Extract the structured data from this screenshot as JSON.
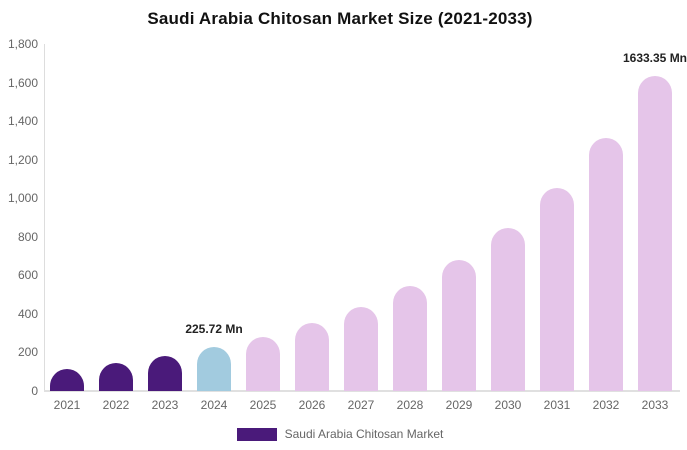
{
  "title": "Saudi Arabia Chitosan Market Size (2021-2033)",
  "legend": {
    "label": "Saudi Arabia Chitosan Market",
    "swatch_color": "#4A1A7A"
  },
  "colors": {
    "dark_purple": "#4A1A7A",
    "light_blue": "#A2CBDF",
    "light_pink": "#E5C5E9",
    "axis_line": "#DDDDDD",
    "tick_text": "#666666",
    "data_label_text": "#222222"
  },
  "chart_data": {
    "type": "bar",
    "title": "Saudi Arabia Chitosan Market Size (2021-2033)",
    "xlabel": "",
    "ylabel": "",
    "unit": "Mn",
    "categories": [
      "2021",
      "2022",
      "2023",
      "2024",
      "2025",
      "2026",
      "2027",
      "2028",
      "2029",
      "2030",
      "2031",
      "2032",
      "2033"
    ],
    "values": [
      116.7,
      145.4,
      181.2,
      225.72,
      281.2,
      350.4,
      436.6,
      544.0,
      677.8,
      844.5,
      1052.2,
      1311.1,
      1633.35
    ],
    "bar_colors": [
      "#4A1A7A",
      "#4A1A7A",
      "#4A1A7A",
      "#A2CBDF",
      "#E5C5E9",
      "#E5C5E9",
      "#E5C5E9",
      "#E5C5E9",
      "#E5C5E9",
      "#E5C5E9",
      "#E5C5E9",
      "#E5C5E9",
      "#E5C5E9"
    ],
    "point_labels": [
      "",
      "",
      "",
      "225.72 Mn",
      "",
      "",
      "",
      "",
      "",
      "",
      "",
      "",
      "1633.35 Mn"
    ],
    "ylim": [
      0,
      1800
    ],
    "ytick_step": 200,
    "ytick_labels": [
      "0",
      "200",
      "400",
      "600",
      "800",
      "1,000",
      "1,200",
      "1,400",
      "1,600",
      "1,800"
    ],
    "grid": false,
    "legend_position": "bottom"
  }
}
